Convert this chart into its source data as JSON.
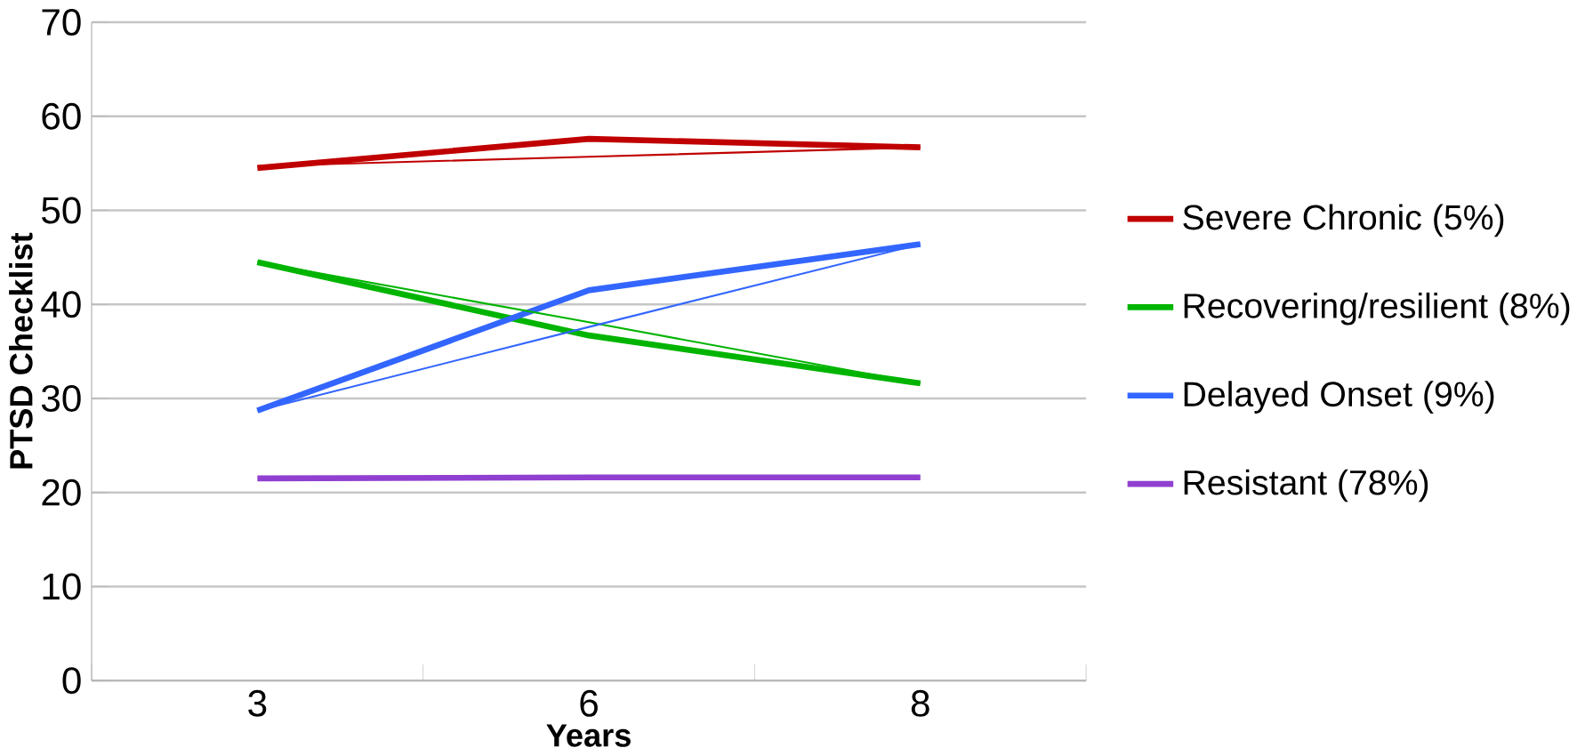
{
  "chart_data": {
    "type": "line",
    "xlabel": "Years",
    "ylabel": "PTSD Checklist",
    "categories": [
      "3",
      "6",
      "8"
    ],
    "series": [
      {
        "name": "Severe Chronic (5%)",
        "color": "#c00000",
        "values": [
          54.5,
          57.6,
          56.7
        ]
      },
      {
        "name": "Recovering/resilient (8%)",
        "color": "#00b400",
        "values": [
          44.5,
          36.7,
          31.6
        ]
      },
      {
        "name": "Delayed Onset (9%)",
        "color": "#3366ff",
        "values": [
          28.7,
          41.5,
          46.4
        ]
      },
      {
        "name": "Resistant (78%)",
        "color": "#9040d0",
        "values": [
          21.5,
          21.6,
          21.6
        ]
      },
      {
        "color": "#c00000",
        "values": [
          54.7,
          55.7,
          56.7
        ]
      },
      {
        "color": "#00b400",
        "values": [
          44.5,
          38.1,
          31.6
        ]
      },
      {
        "color": "#3366ff",
        "values": [
          28.7,
          37.6,
          46.4
        ]
      }
    ],
    "ylim": [
      0,
      70
    ],
    "yticks": [
      0,
      10,
      20,
      30,
      40,
      50,
      60,
      70
    ],
    "grid": "y",
    "legend": "right",
    "marker": "none",
    "line_style": "solid"
  }
}
